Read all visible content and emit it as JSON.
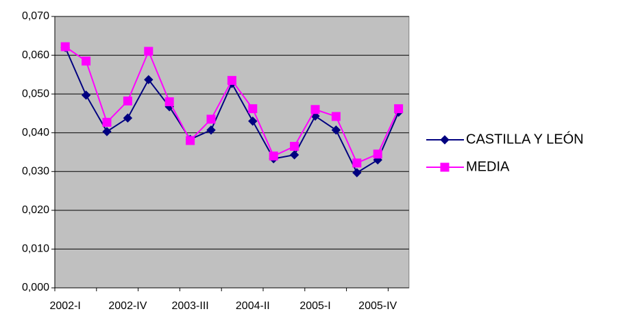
{
  "chart_data": {
    "type": "line",
    "categories": [
      "2002-I",
      null,
      null,
      "2002-IV",
      null,
      null,
      "2003-III",
      null,
      null,
      "2004-II",
      null,
      null,
      "2005-I",
      null,
      null,
      "2005-IV",
      null
    ],
    "series": [
      {
        "name": "CASTILLA Y LEÓN",
        "color": "#000080",
        "marker": "diamond",
        "values": [
          0.062,
          0.0497,
          0.0403,
          0.0438,
          0.0537,
          0.0467,
          0.0383,
          0.0407,
          0.0527,
          0.043,
          0.0333,
          0.0343,
          0.0443,
          0.0407,
          0.0297,
          0.033,
          0.0453
        ]
      },
      {
        "name": "MEDIA",
        "color": "#ff00ff",
        "marker": "square",
        "values": [
          0.0622,
          0.0585,
          0.0427,
          0.0482,
          0.061,
          0.048,
          0.038,
          0.0435,
          0.0535,
          0.0462,
          0.034,
          0.0365,
          0.046,
          0.0442,
          0.0322,
          0.0345,
          0.0462
        ]
      }
    ],
    "ylim": [
      0,
      0.07
    ],
    "yticks": [
      {
        "value": 0,
        "label": "0,000"
      },
      {
        "value": 0.01,
        "label": "0,010"
      },
      {
        "value": 0.02,
        "label": "0,020"
      },
      {
        "value": 0.03,
        "label": "0,030"
      },
      {
        "value": 0.04,
        "label": "0,040"
      },
      {
        "value": 0.05,
        "label": "0,050"
      },
      {
        "value": 0.06,
        "label": "0,060"
      },
      {
        "value": 0.07,
        "label": "0,070"
      }
    ],
    "grid": true,
    "background": "#c0c0c0",
    "legend": "right"
  }
}
